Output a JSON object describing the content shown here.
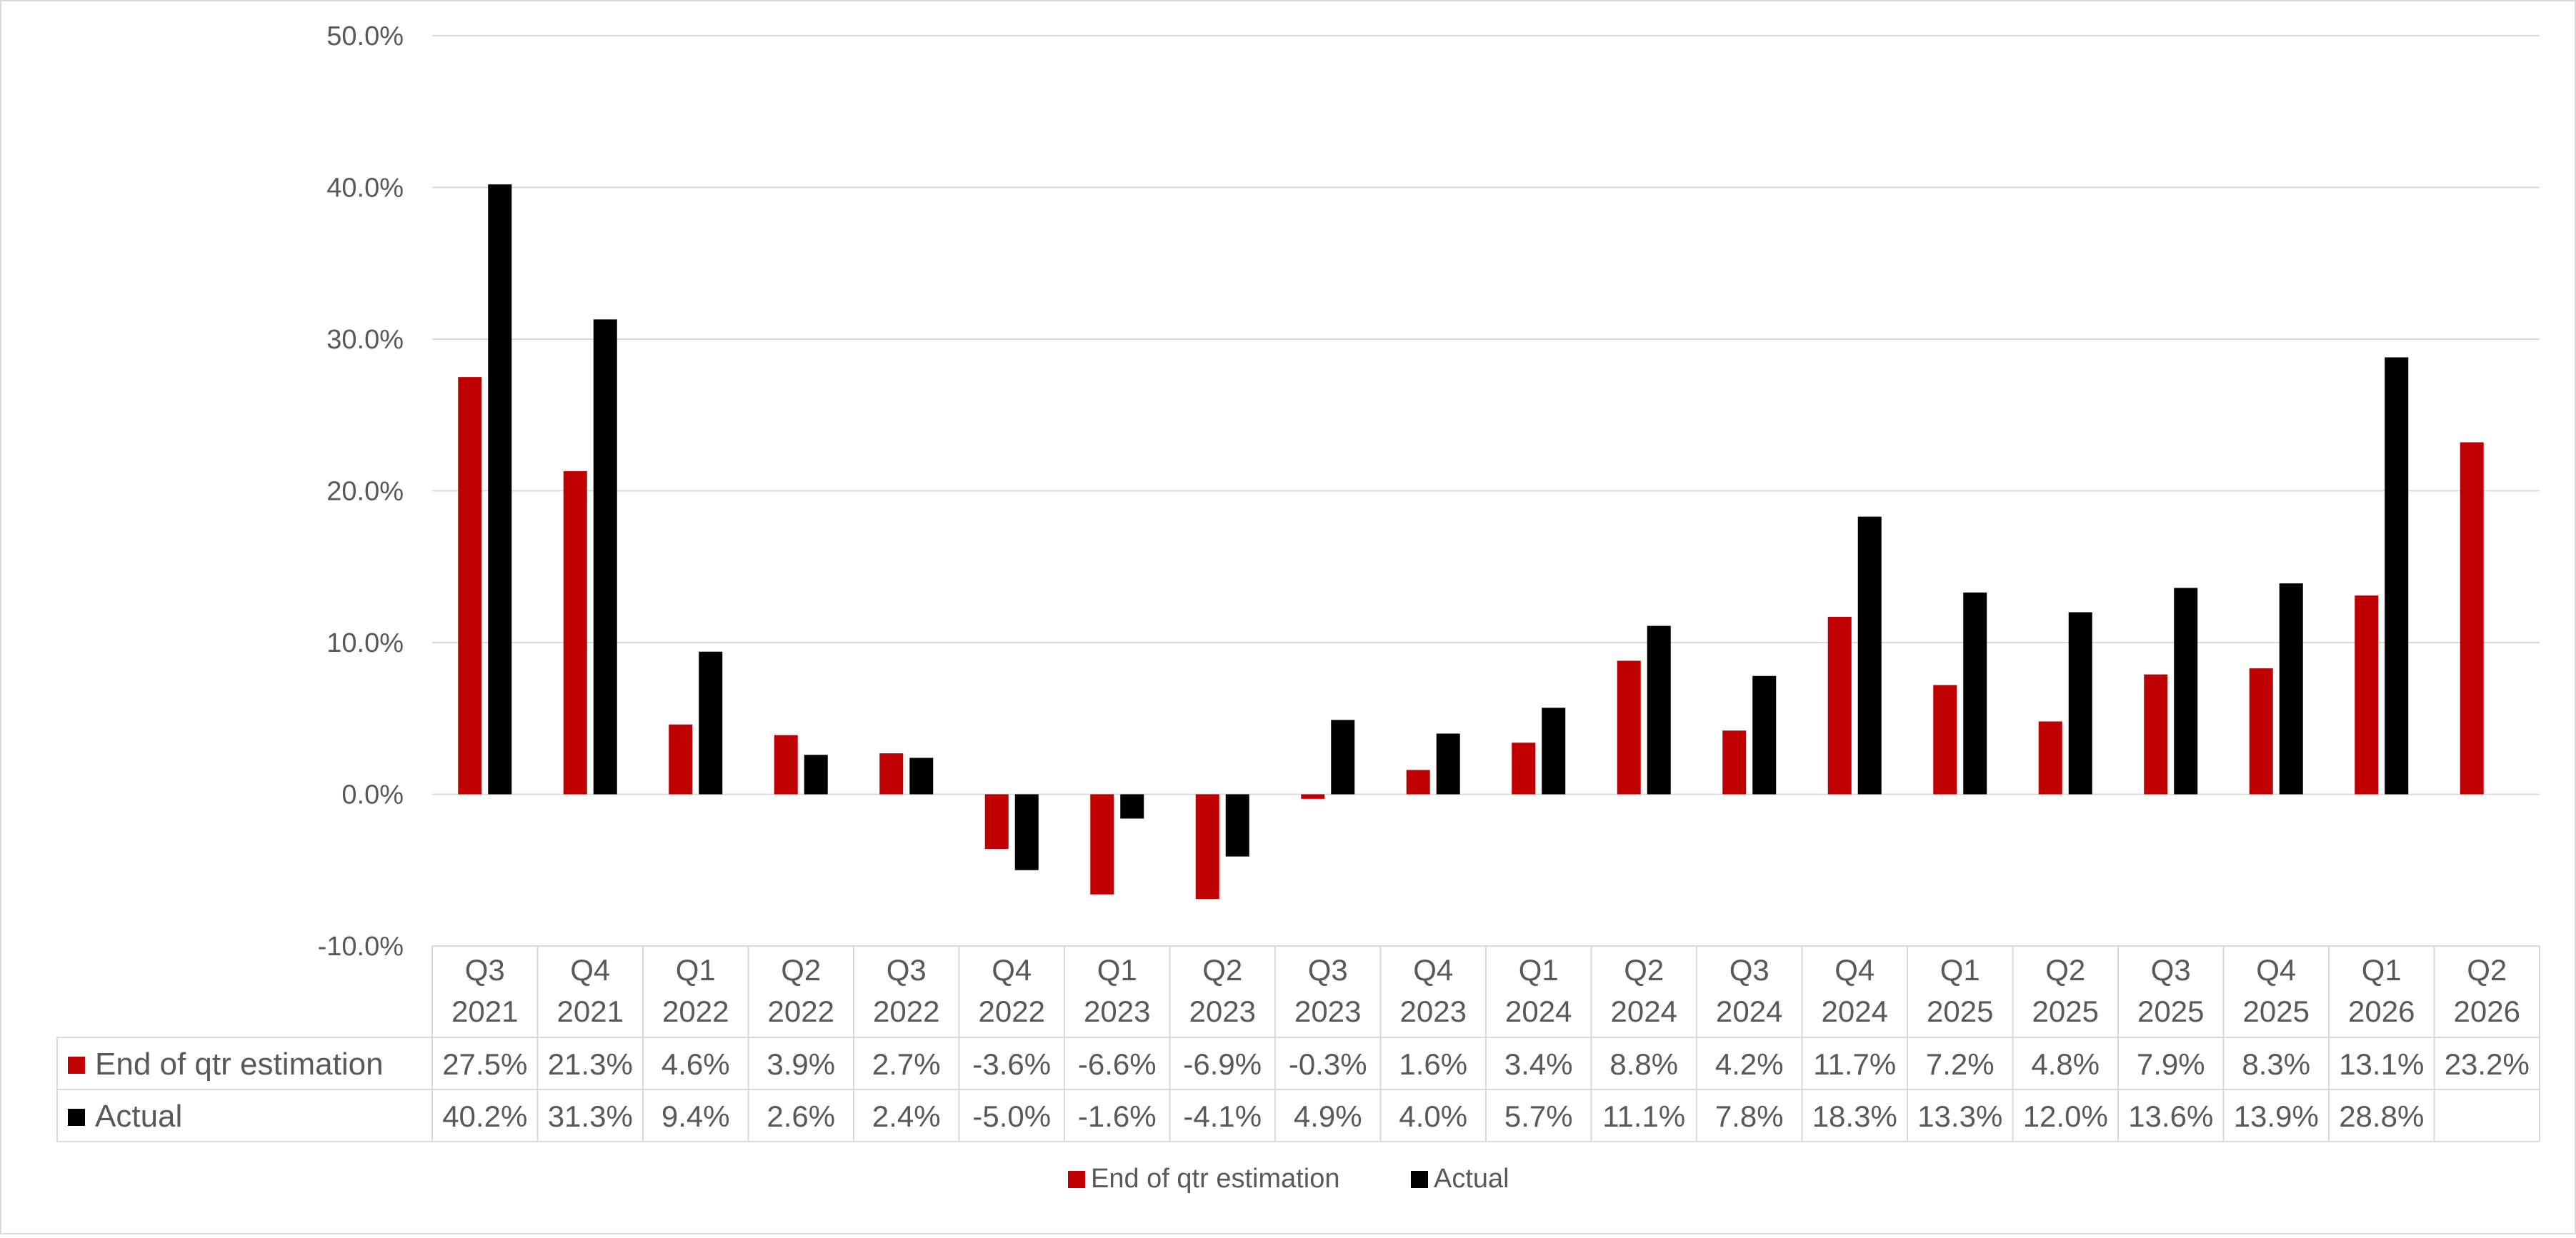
{
  "chart_data": {
    "type": "bar",
    "title": "",
    "xlabel": "",
    "ylabel": "",
    "ylim": [
      -10,
      50
    ],
    "yticks": [
      "50.0%",
      "40.0%",
      "30.0%",
      "20.0%",
      "10.0%",
      "0.0%",
      "-10.0%"
    ],
    "ytick_values": [
      50,
      40,
      30,
      20,
      10,
      0,
      -10
    ],
    "grid": true,
    "legend_position": "bottom",
    "categories": [
      [
        "Q3",
        "2021"
      ],
      [
        "Q4",
        "2021"
      ],
      [
        "Q1",
        "2022"
      ],
      [
        "Q2",
        "2022"
      ],
      [
        "Q3",
        "2022"
      ],
      [
        "Q4",
        "2022"
      ],
      [
        "Q1",
        "2023"
      ],
      [
        "Q2",
        "2023"
      ],
      [
        "Q3",
        "2023"
      ],
      [
        "Q4",
        "2023"
      ],
      [
        "Q1",
        "2024"
      ],
      [
        "Q2",
        "2024"
      ],
      [
        "Q3",
        "2024"
      ],
      [
        "Q4",
        "2024"
      ],
      [
        "Q1",
        "2025"
      ],
      [
        "Q2",
        "2025"
      ],
      [
        "Q3",
        "2025"
      ],
      [
        "Q4",
        "2025"
      ],
      [
        "Q1",
        "2026"
      ],
      [
        "Q2",
        "2026"
      ]
    ],
    "series": [
      {
        "name": "End of qtr estimation",
        "color": "#c00000",
        "values": [
          27.5,
          21.3,
          4.6,
          3.9,
          2.7,
          -3.6,
          -6.6,
          -6.9,
          -0.3,
          1.6,
          3.4,
          8.8,
          4.2,
          11.7,
          7.2,
          4.8,
          7.9,
          8.3,
          13.1,
          23.2
        ],
        "labels": [
          "27.5%",
          "21.3%",
          "4.6%",
          "3.9%",
          "2.7%",
          "-3.6%",
          "-6.6%",
          "-6.9%",
          "-0.3%",
          "1.6%",
          "3.4%",
          "8.8%",
          "4.2%",
          "11.7%",
          "7.2%",
          "4.8%",
          "7.9%",
          "8.3%",
          "13.1%",
          "23.2%"
        ]
      },
      {
        "name": "Actual",
        "color": "#000000",
        "values": [
          40.2,
          31.3,
          9.4,
          2.6,
          2.4,
          -5.0,
          -1.6,
          -4.1,
          4.9,
          4.0,
          5.7,
          11.1,
          7.8,
          18.3,
          13.3,
          12.0,
          13.6,
          13.9,
          28.8,
          null
        ],
        "labels": [
          "40.2%",
          "31.3%",
          "9.4%",
          "2.6%",
          "2.4%",
          "-5.0%",
          "-1.6%",
          "-4.1%",
          "4.9%",
          "4.0%",
          "5.7%",
          "11.1%",
          "7.8%",
          "18.3%",
          "13.3%",
          "12.0%",
          "13.6%",
          "13.9%",
          "28.8%",
          ""
        ]
      }
    ]
  }
}
